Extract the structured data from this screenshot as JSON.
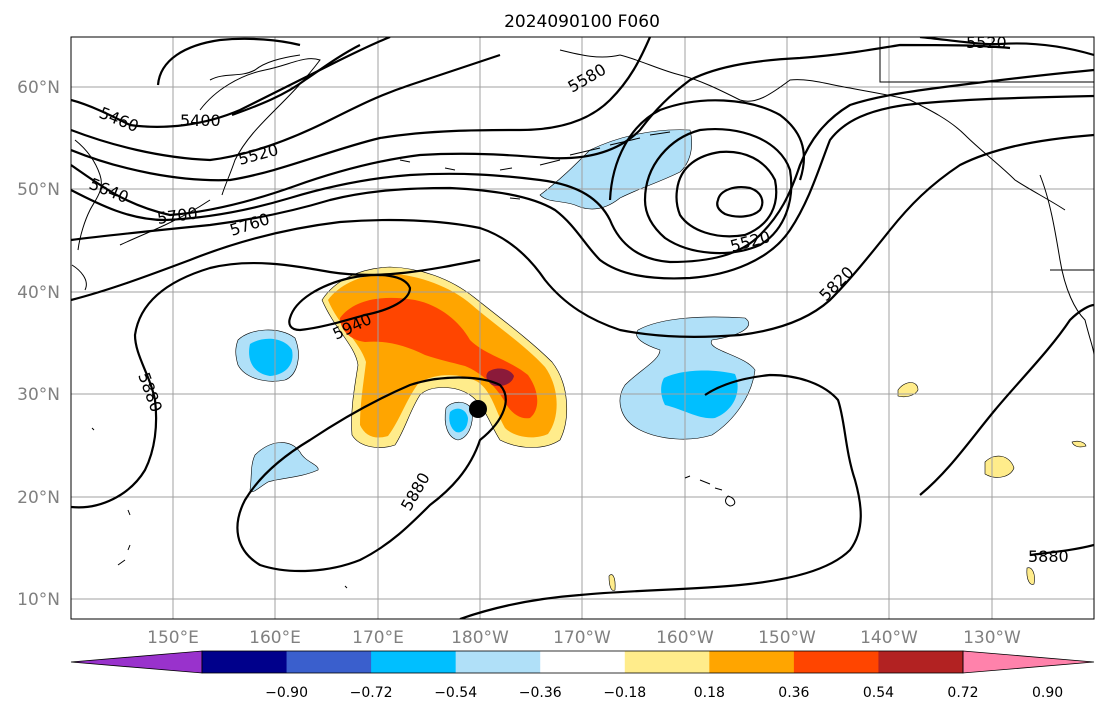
{
  "title": "2024090100 F060",
  "lat_labels": [
    "60°N",
    "50°N",
    "40°N",
    "30°N",
    "20°N",
    "10°N"
  ],
  "lon_labels": [
    "150°E",
    "160°E",
    "170°E",
    "180°W",
    "170°W",
    "160°W",
    "150°W",
    "140°W",
    "130°W"
  ],
  "contour_labels": [
    "5460",
    "5400",
    "5520",
    "5640",
    "5700",
    "5760",
    "5580",
    "5520",
    "5520",
    "5820",
    "5940",
    "5880",
    "5880",
    "5880"
  ],
  "colorbar": {
    "ticks": [
      "−0.90",
      "−0.72",
      "−0.54",
      "−0.36",
      "−0.18",
      "0.18",
      "0.36",
      "0.54",
      "0.72",
      "0.90"
    ],
    "colors": [
      "#9932cc",
      "#00008b",
      "#3a5fcd",
      "#00bfff",
      "#b0e0f8",
      "#ffffff",
      "#ffec8b",
      "#ffa500",
      "#ff4500",
      "#b22222",
      "#ff82ab"
    ]
  },
  "shading_colors": {
    "light_blue": "#b0e0f8",
    "blue": "#00bfff",
    "yellow": "#ffec8b",
    "orange": "#ffa500",
    "red_orange": "#ff4500",
    "dark_red": "#8b1a3a"
  },
  "marker": "storm-center-dot"
}
